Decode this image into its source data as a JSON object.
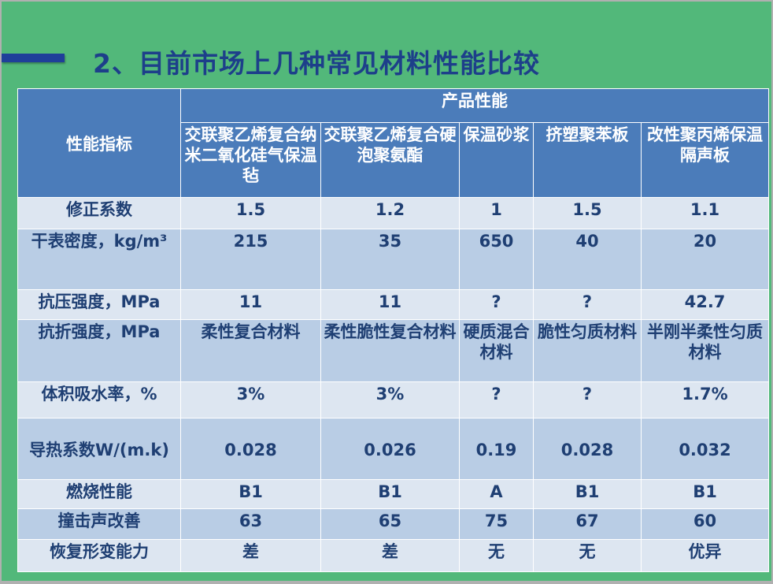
{
  "title": "2、目前市场上几种常见材料性能比较",
  "table": {
    "corner_header": "性能指标",
    "group_header": "产品性能",
    "columns": [
      "交联聚乙烯复合纳米二氧化硅气保温毡",
      "交联聚乙烯复合硬泡聚氨酯",
      "保温砂浆",
      "挤塑聚苯板",
      "改性聚丙烯保温隔声板"
    ],
    "rows": [
      {
        "label": "修正系数",
        "values": [
          "1.5",
          "1.2",
          "1",
          "1.5",
          "1.1"
        ]
      },
      {
        "label": "干表密度，kg/m³",
        "values": [
          "215",
          "35",
          "650",
          "40",
          "20"
        ]
      },
      {
        "label": "抗压强度，MPa",
        "values": [
          "11",
          "11",
          "?",
          "?",
          "42.7"
        ]
      },
      {
        "label": "抗折强度，MPa",
        "values": [
          "柔性复合材料",
          "柔性脆性复合材料",
          "硬质混合材料",
          "脆性匀质材料",
          "半刚半柔性匀质材料"
        ]
      },
      {
        "label": "体积吸水率，%",
        "values": [
          "3%",
          "3%",
          "?",
          "?",
          "1.7%"
        ]
      },
      {
        "label": "导热系数W/(m.k)",
        "values": [
          "0.028",
          "0.026",
          "0.19",
          "0.028",
          "0.032"
        ]
      },
      {
        "label": "燃烧性能",
        "values": [
          "B1",
          "B1",
          "A",
          "B1",
          "B1"
        ]
      },
      {
        "label": "撞击声改善",
        "values": [
          "63",
          "65",
          "75",
          "67",
          "60"
        ]
      },
      {
        "label": "恢复形变能力",
        "values": [
          "差",
          "差",
          "无",
          "无",
          "优异"
        ]
      }
    ]
  },
  "colors": {
    "background": "#52b87a",
    "header": "#4b7cba",
    "row_light": "#dde6f1",
    "row_dark": "#b9cde5",
    "text": "#1f3f73",
    "title": "#1d3f8a"
  }
}
